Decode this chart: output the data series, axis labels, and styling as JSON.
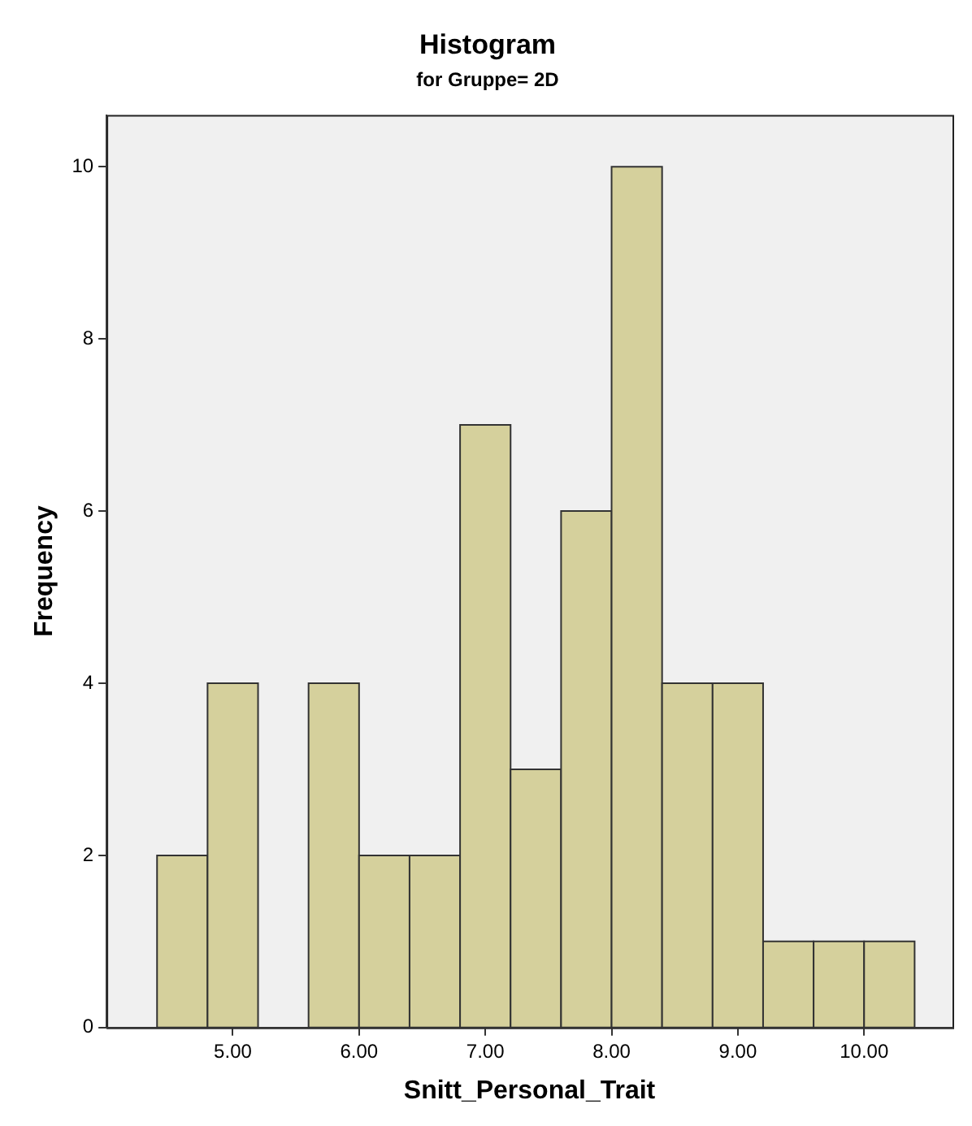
{
  "chart_data": {
    "type": "histogram",
    "title": "Histogram",
    "subtitle": "for Gruppe= 2D",
    "xlabel": "Snitt_Personal_Trait",
    "ylabel": "Frequency",
    "bins": [
      4.4,
      4.8,
      5.2,
      5.6,
      6.0,
      6.4,
      6.8,
      7.2,
      7.6,
      8.0,
      8.4,
      8.8,
      9.2,
      9.6,
      10.0,
      10.4
    ],
    "values": [
      2,
      4,
      0,
      4,
      2,
      2,
      7,
      3,
      6,
      10,
      4,
      4,
      1,
      1,
      1
    ],
    "color": "#d5d09c",
    "xlim": [
      4.0,
      10.7
    ],
    "xticks": [
      {
        "value": 5,
        "label": "5.00"
      },
      {
        "value": 6,
        "label": "6.00"
      },
      {
        "value": 7,
        "label": "7.00"
      },
      {
        "value": 8,
        "label": "8.00"
      },
      {
        "value": 9,
        "label": "9.00"
      },
      {
        "value": 10,
        "label": "10.00"
      }
    ],
    "ylim": [
      0,
      10.6
    ],
    "yticks": [
      0,
      2,
      4,
      6,
      8,
      10
    ],
    "grid": false,
    "legend": false
  }
}
